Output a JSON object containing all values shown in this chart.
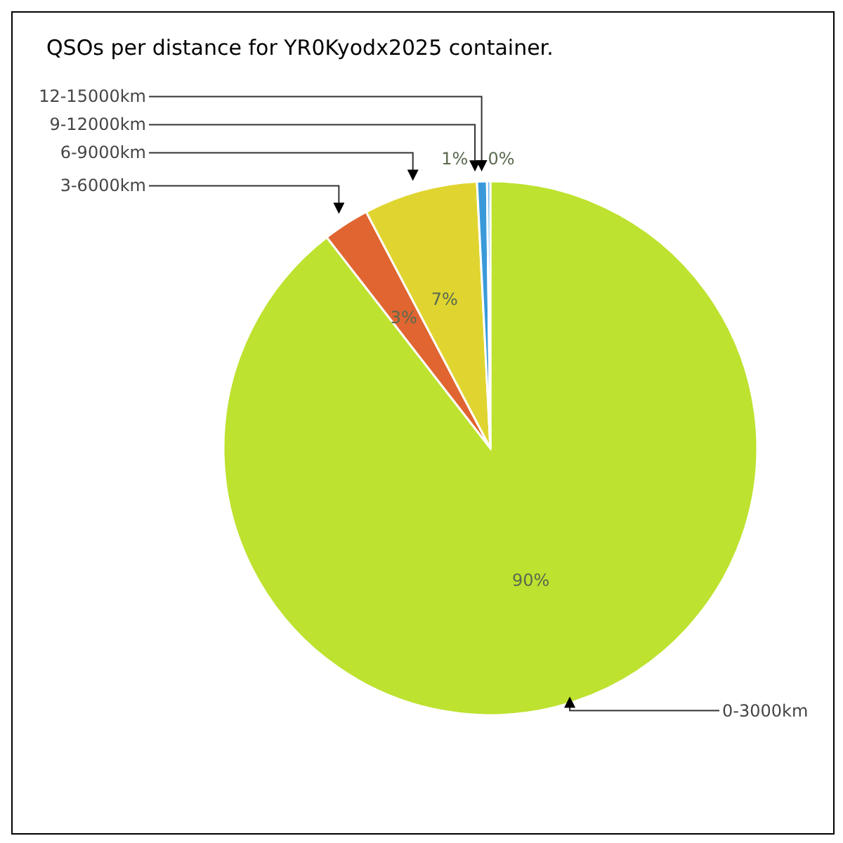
{
  "chart_data": {
    "type": "pie",
    "title": "QSOs per distance for YR0Kyodx2025 container.",
    "categories": [
      "0-3000km",
      "3-6000km",
      "6-9000km",
      "9-12000km",
      "12-15000km"
    ],
    "values": [
      89.5,
      2.8,
      6.9,
      0.6,
      0.2
    ],
    "value_labels": [
      "90%",
      "3%",
      "7%",
      "1%",
      "0%"
    ],
    "colors": [
      "#bde22f",
      "#e06530",
      "#e0d530",
      "#3a9ad9",
      "#6fb8e8"
    ],
    "legend": false
  }
}
